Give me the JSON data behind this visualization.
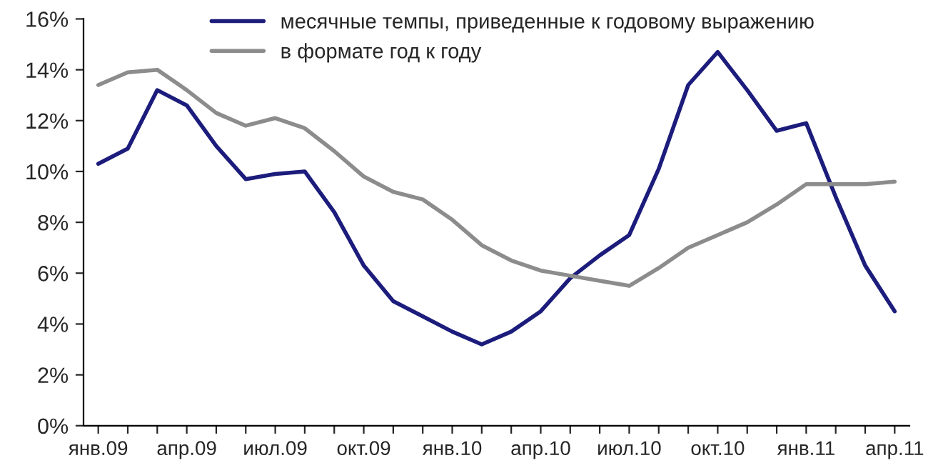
{
  "chart_data": {
    "type": "line",
    "categories": [
      "янв.09",
      null,
      null,
      "апр.09",
      null,
      null,
      "июл.09",
      null,
      null,
      "окт.09",
      null,
      null,
      "янв.10",
      null,
      null,
      "апр.10",
      null,
      null,
      "июл.10",
      null,
      null,
      "окт.10",
      null,
      null,
      "янв.11",
      null,
      null,
      "апр.11"
    ],
    "series": [
      {
        "name": "месячные темпы, приведенные к годовому выражению",
        "color": "#1c1c7c",
        "values": [
          10.3,
          10.9,
          13.2,
          12.6,
          11.0,
          9.7,
          9.9,
          10.0,
          8.4,
          6.3,
          4.9,
          4.3,
          3.7,
          3.2,
          3.7,
          4.5,
          5.8,
          6.7,
          7.5,
          10.1,
          13.4,
          14.7,
          13.2,
          11.6,
          11.9,
          9.0,
          6.3,
          4.5
        ]
      },
      {
        "name": "в формате год к году",
        "color": "#8c8c8c",
        "values": [
          13.4,
          13.9,
          14.0,
          13.2,
          12.3,
          11.8,
          12.1,
          11.7,
          10.8,
          9.8,
          9.2,
          8.9,
          8.1,
          7.1,
          6.5,
          6.1,
          5.9,
          5.7,
          5.5,
          6.2,
          7.0,
          7.5,
          8.0,
          8.7,
          9.5,
          9.5,
          9.5,
          9.6
        ]
      }
    ],
    "ylim": [
      0,
      16
    ],
    "yticks": [
      {
        "value": 0,
        "label": "0%"
      },
      {
        "value": 2,
        "label": "2%"
      },
      {
        "value": 4,
        "label": "4%"
      },
      {
        "value": 6,
        "label": "6%"
      },
      {
        "value": 8,
        "label": "8%"
      },
      {
        "value": 10,
        "label": "10%"
      },
      {
        "value": 12,
        "label": "12%"
      },
      {
        "value": 14,
        "label": "14%"
      },
      {
        "value": 16,
        "label": "16%"
      }
    ],
    "grid": false,
    "legend": "top",
    "line_style": "solid"
  }
}
